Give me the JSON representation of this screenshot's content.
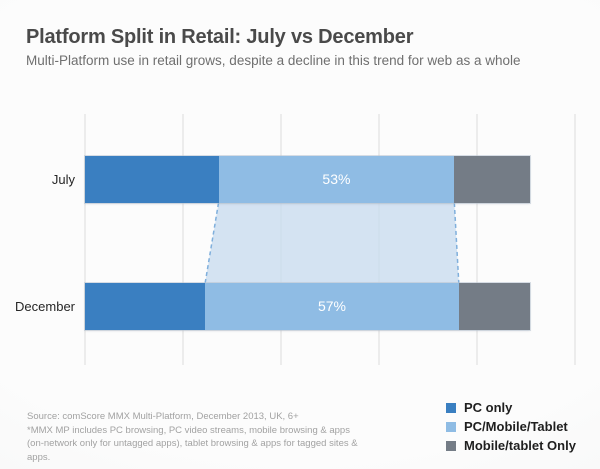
{
  "header": {
    "title": "Platform Split in Retail: July vs December",
    "subtitle": "Multi-Platform use in retail grows, despite a decline in this trend for web as a whole"
  },
  "chart_data": {
    "type": "bar",
    "orientation": "horizontal",
    "stacked": true,
    "units": "percent",
    "categories": [
      "July",
      "December"
    ],
    "series": [
      {
        "name": "PC only",
        "color": "#3A7FC1",
        "values": [
          30,
          27
        ]
      },
      {
        "name": "PC/Mobile/Tablet",
        "color": "#8FBCE4",
        "values": [
          53,
          57
        ]
      },
      {
        "name": "Mobile/tablet Only",
        "color": "#747C86",
        "values": [
          17,
          16
        ]
      }
    ],
    "data_labels": {
      "series": "PC/Mobile/Tablet",
      "values": [
        "53%",
        "57%"
      ]
    },
    "connector": {
      "series": "PC/Mobile/Tablet",
      "fill": "#C9DCEF",
      "stroke": "#7FAFDC"
    },
    "gridlines": {
      "count": 6,
      "color": "#DBDBDB"
    },
    "legend_position": "bottom-right",
    "xlim": [
      0,
      100
    ],
    "grid": true
  },
  "legend": {
    "items": [
      {
        "label": "PC only",
        "color": "#3A7FC1"
      },
      {
        "label": "PC/Mobile/Tablet",
        "color": "#8FBCE4"
      },
      {
        "label": "Mobile/tablet Only",
        "color": "#747C86"
      }
    ]
  },
  "footer": {
    "source_text": "Source: comScore MMX Multi-Platform, December 2013, UK, 6+",
    "footnote_text": "*MMX MP includes PC browsing, PC video streams, mobile browsing & apps (on-network only for untagged apps), tablet browsing & apps for tagged sites & apps."
  }
}
